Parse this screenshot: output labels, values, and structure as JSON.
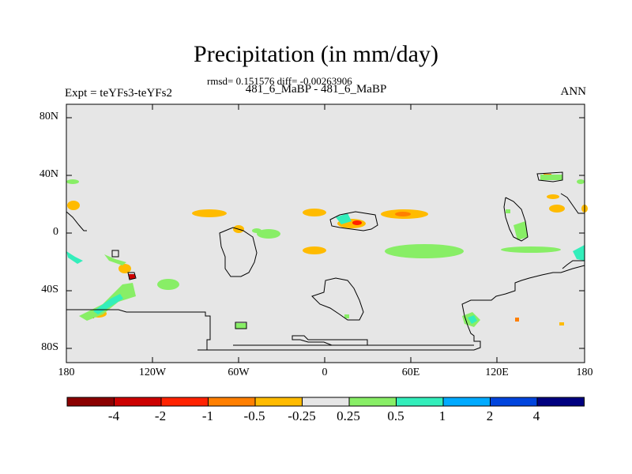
{
  "title": "Precipitation (in mm/day)",
  "stats": "rmsd= 0.151576 diff= -0.00263906",
  "subtitle": "481_6_MaBP - 481_6_MaBP",
  "left_label": "Expt = teYFs3-teYFs2",
  "right_label": "ANN",
  "lat_labels": [
    "80N",
    "40N",
    "0",
    "40S",
    "80S"
  ],
  "lon_labels": [
    "180",
    "120W",
    "60W",
    "0",
    "60E",
    "120E",
    "180"
  ],
  "colorbar": {
    "labels": [
      "-4",
      "-2",
      "-1",
      "-0.5",
      "-0.25",
      "0.25",
      "0.5",
      "1",
      "2",
      "4"
    ],
    "colors": [
      "#8b0000",
      "#cc0000",
      "#ff2200",
      "#ff7f00",
      "#ffbb00",
      "#e6e6e6",
      "#88ee66",
      "#33eebb",
      "#00aaff",
      "#0044dd",
      "#000080"
    ]
  },
  "colors": {
    "background": "#e6e6e6",
    "orange": "#ffbb00",
    "dark_orange": "#ff7f00",
    "red": "#ff2200",
    "dark_red": "#cc0000",
    "green": "#88ee66",
    "cyan": "#33eebb"
  }
}
